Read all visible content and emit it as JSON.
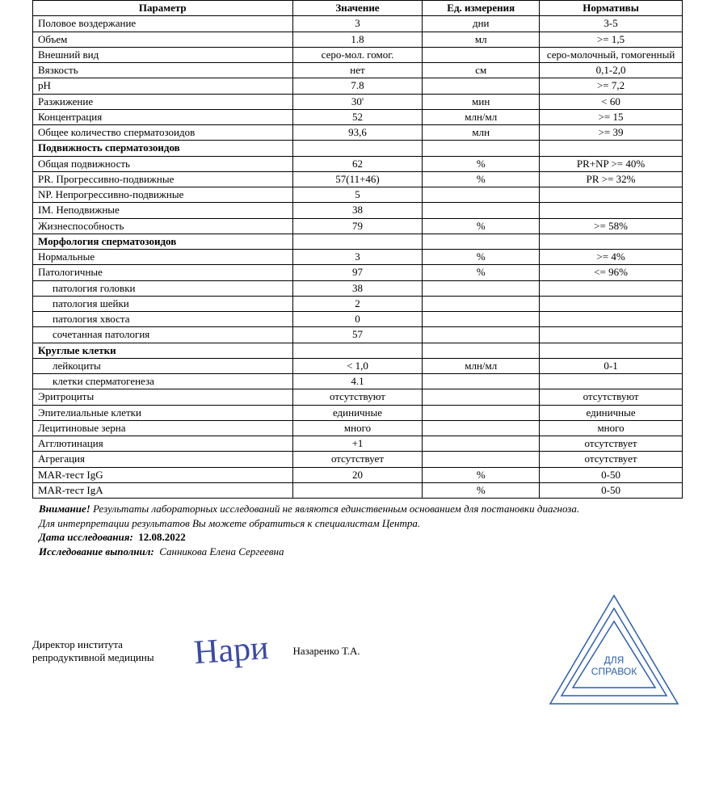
{
  "headers": {
    "param": "Параметр",
    "value": "Значение",
    "unit": "Ед. измерения",
    "norm": "Нормативы"
  },
  "rows": [
    {
      "param": "Половое воздержание",
      "value": "3",
      "unit": "дни",
      "norm": "3-5"
    },
    {
      "param": "Объем",
      "value": "1.8",
      "unit": "мл",
      "norm": ">= 1,5"
    },
    {
      "param": "Внешний вид",
      "value": "серо-мол. гомог.",
      "unit": "",
      "norm": "серо-молочный, гомогенный"
    },
    {
      "param": "Вязкость",
      "value": "нет",
      "unit": "см",
      "norm": "0,1-2,0"
    },
    {
      "param": "pH",
      "value": "7.8",
      "unit": "",
      "norm": ">= 7,2"
    },
    {
      "param": "Разжижение",
      "value": "30'",
      "unit": "мин",
      "norm": "< 60"
    },
    {
      "param": "Концентрация",
      "value": "52",
      "unit": "млн/мл",
      "norm": ">= 15"
    },
    {
      "param": "Общее количество сперматозоидов",
      "value": "93,6",
      "unit": "млн",
      "norm": ">= 39"
    },
    {
      "param": "Подвижность сперматозоидов",
      "value": "",
      "unit": "",
      "norm": "",
      "bold": true
    },
    {
      "param": "Общая подвижность",
      "value": "62",
      "unit": "%",
      "norm": "PR+NP >= 40%"
    },
    {
      "param": "PR. Прогрессивно-подвижные",
      "value": "57(11+46)",
      "unit": "%",
      "norm": "PR >= 32%"
    },
    {
      "param": "NP. Непрогрессивно-подвижные",
      "value": "5",
      "unit": "",
      "norm": ""
    },
    {
      "param": "IM. Неподвижные",
      "value": "38",
      "unit": "",
      "norm": ""
    },
    {
      "param": "Жизнеспособность",
      "value": "79",
      "unit": "%",
      "norm": ">= 58%"
    },
    {
      "param": "Морфология сперматозоидов",
      "value": "",
      "unit": "",
      "norm": "",
      "bold": true
    },
    {
      "param": "Нормальные",
      "value": "3",
      "unit": "%",
      "norm": ">= 4%"
    },
    {
      "param": "Патологичные",
      "value": "97",
      "unit": "%",
      "norm": "<= 96%"
    },
    {
      "param": "патология головки",
      "value": "38",
      "unit": "",
      "norm": "",
      "indent": true
    },
    {
      "param": "патология шейки",
      "value": "2",
      "unit": "",
      "norm": "",
      "indent": true
    },
    {
      "param": "патология хвоста",
      "value": "0",
      "unit": "",
      "norm": "",
      "indent": true
    },
    {
      "param": "сочетанная патология",
      "value": "57",
      "unit": "",
      "norm": "",
      "indent": true
    },
    {
      "param": "Круглые клетки",
      "value": "",
      "unit": "",
      "norm": "",
      "bold": true
    },
    {
      "param": "лейкоциты",
      "value": "< 1,0",
      "unit": "млн/мл",
      "norm": "0-1",
      "indent": true
    },
    {
      "param": "клетки сперматогенеза",
      "value": "4.1",
      "unit": "",
      "norm": "",
      "indent": true
    },
    {
      "param": "Эритроциты",
      "value": "отсутствуют",
      "unit": "",
      "norm": "отсутствуют"
    },
    {
      "param": "Эпителиальные клетки",
      "value": "единичные",
      "unit": "",
      "norm": "единичные"
    },
    {
      "param": "Лецитиновые зерна",
      "value": "много",
      "unit": "",
      "norm": "много"
    },
    {
      "param": "Агглютинация",
      "value": "+1",
      "unit": "",
      "norm": "отсутствует"
    },
    {
      "param": "Агрегация",
      "value": "отсутствует",
      "unit": "",
      "norm": "отсутствует"
    },
    {
      "param": "MAR-тест IgG",
      "value": "20",
      "unit": "%",
      "norm": "0-50"
    },
    {
      "param": "MAR-тест IgA",
      "value": "",
      "unit": "%",
      "norm": "0-50"
    }
  ],
  "notes": {
    "warn_label": "Внимание!",
    "warn_text": " Результаты лабораторных исследований не являются единственным основанием для постановки диагноза.",
    "line2": "Для интерпретации результатов Вы можете обратиться к специалистам Центра.",
    "date_label": "Дата исследования:",
    "date_value": "12.08.2022",
    "performed_label": "Исследование выполнил:",
    "performed_value": "Санникова Елена Сергеевна"
  },
  "signature": {
    "title": "Директор института репродуктивной медицины",
    "name": "Назаренко Т.А.",
    "scribble": "Нари"
  },
  "stamp": {
    "center_line1": "ДЛЯ",
    "center_line2": "СПРАВОК",
    "color": "#2a5fb0"
  }
}
